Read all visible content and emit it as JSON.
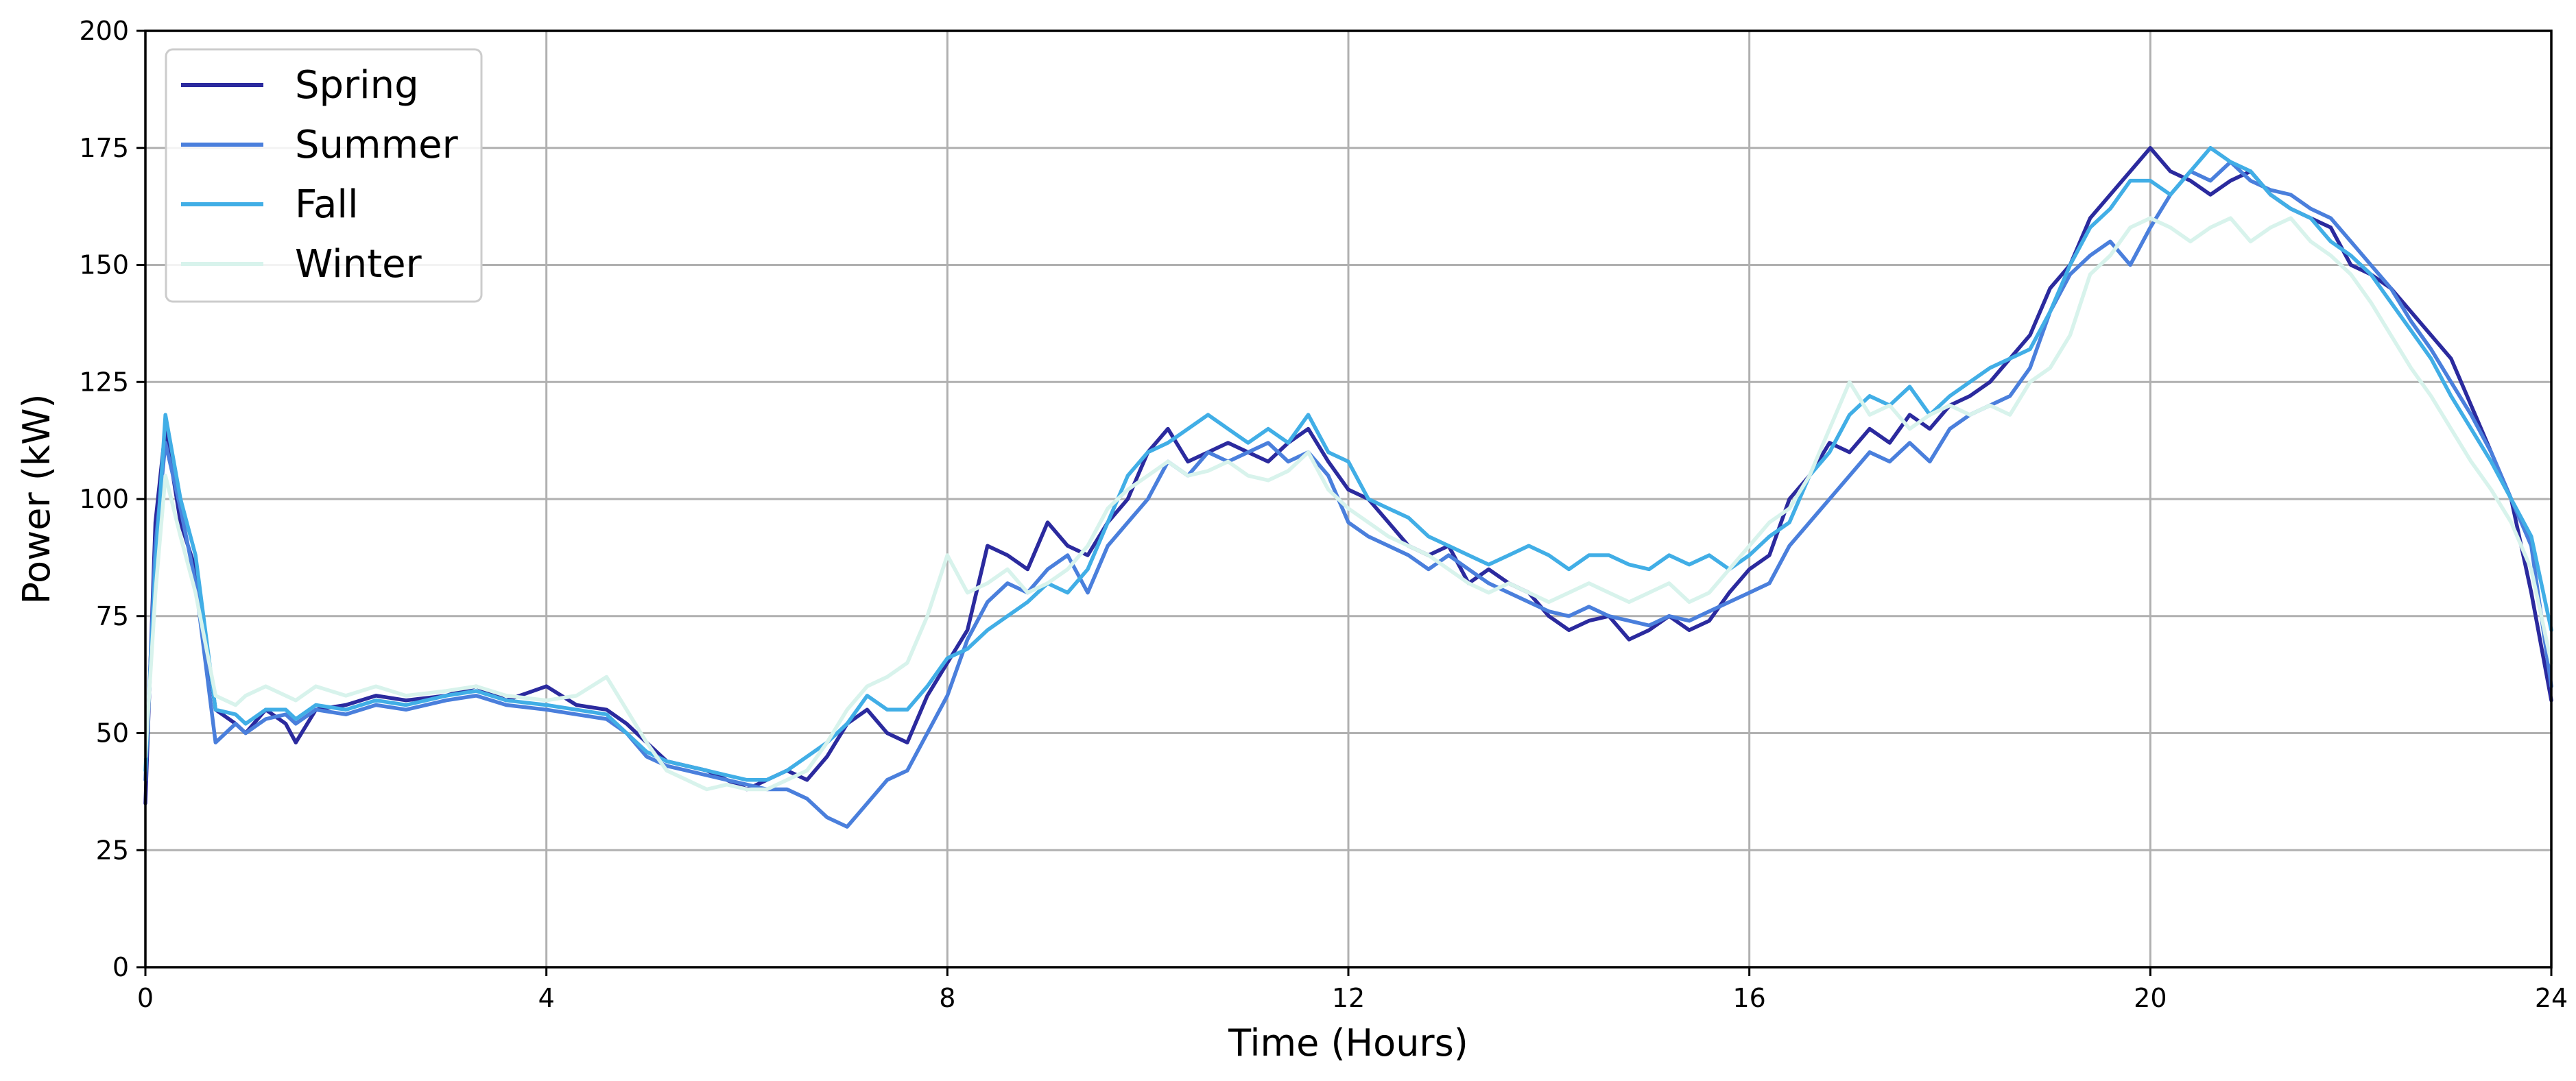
{
  "chart_data": {
    "type": "line",
    "title": "",
    "xlabel": "Time (Hours)",
    "ylabel": "Power (kW)",
    "xlim": [
      0,
      24
    ],
    "ylim": [
      0,
      200
    ],
    "xticks": [
      0,
      4,
      8,
      12,
      16,
      20,
      24
    ],
    "yticks": [
      0,
      25,
      50,
      75,
      100,
      125,
      150,
      175,
      200
    ],
    "grid": true,
    "legend": "top-left",
    "series": [
      {
        "name": "Spring",
        "color": "#2b2a9e",
        "x": [
          0,
          0.1,
          0.2,
          0.35,
          0.5,
          0.7,
          0.9,
          1.0,
          1.2,
          1.4,
          1.5,
          1.7,
          2.0,
          2.3,
          2.6,
          3.0,
          3.3,
          3.6,
          4.0,
          4.3,
          4.6,
          4.8,
          5.0,
          5.2,
          5.4,
          5.6,
          5.8,
          6.0,
          6.2,
          6.4,
          6.6,
          6.8,
          7.0,
          7.2,
          7.4,
          7.6,
          7.8,
          8.0,
          8.2,
          8.4,
          8.6,
          8.8,
          9.0,
          9.2,
          9.4,
          9.6,
          9.8,
          10.0,
          10.2,
          10.4,
          10.6,
          10.8,
          11.0,
          11.2,
          11.4,
          11.6,
          11.8,
          12.0,
          12.2,
          12.4,
          12.6,
          12.8,
          13.0,
          13.2,
          13.4,
          13.6,
          13.8,
          14.0,
          14.2,
          14.4,
          14.6,
          14.8,
          15.0,
          15.2,
          15.4,
          15.6,
          15.8,
          16.0,
          16.2,
          16.4,
          16.6,
          16.8,
          17.0,
          17.2,
          17.4,
          17.6,
          17.8,
          18.0,
          18.2,
          18.4,
          18.6,
          18.8,
          19.0,
          19.2,
          19.4,
          19.6,
          19.8,
          20.0,
          20.2,
          20.4,
          20.6,
          20.8,
          21.0,
          21.2,
          21.4,
          21.6,
          21.8,
          22.0,
          22.2,
          22.4,
          22.6,
          22.8,
          23.0,
          23.2,
          23.4,
          23.6,
          23.8,
          24.0
        ],
        "values": [
          35,
          95,
          115,
          95,
          85,
          55,
          52,
          50,
          55,
          52,
          48,
          55,
          56,
          58,
          57,
          58,
          60,
          57,
          60,
          56,
          55,
          52,
          48,
          44,
          43,
          42,
          40,
          38,
          40,
          42,
          40,
          45,
          52,
          55,
          50,
          48,
          58,
          65,
          72,
          90,
          88,
          85,
          95,
          90,
          88,
          95,
          100,
          110,
          115,
          108,
          110,
          112,
          110,
          108,
          112,
          115,
          108,
          102,
          100,
          95,
          90,
          88,
          90,
          82,
          85,
          82,
          80,
          75,
          72,
          74,
          75,
          70,
          72,
          75,
          72,
          74,
          80,
          85,
          88,
          100,
          105,
          112,
          110,
          115,
          112,
          118,
          115,
          120,
          122,
          125,
          130,
          135,
          145,
          150,
          160,
          165,
          170,
          175,
          170,
          168,
          165,
          168,
          170,
          165,
          162,
          160,
          158,
          150,
          148,
          145,
          140,
          135,
          130,
          120,
          110,
          100,
          80,
          57
        ]
      },
      {
        "name": "Summer",
        "color": "#4a7fdc",
        "x": [
          0,
          0.1,
          0.2,
          0.35,
          0.5,
          0.7,
          0.9,
          1.0,
          1.2,
          1.4,
          1.5,
          1.7,
          2.0,
          2.3,
          2.6,
          3.0,
          3.3,
          3.6,
          4.0,
          4.3,
          4.6,
          4.8,
          5.0,
          5.2,
          5.4,
          5.6,
          5.8,
          6.0,
          6.2,
          6.4,
          6.6,
          6.8,
          7.0,
          7.2,
          7.4,
          7.6,
          7.8,
          8.0,
          8.2,
          8.4,
          8.6,
          8.8,
          9.0,
          9.2,
          9.4,
          9.6,
          9.8,
          10.0,
          10.2,
          10.4,
          10.6,
          10.8,
          11.0,
          11.2,
          11.4,
          11.6,
          11.8,
          12.0,
          12.2,
          12.4,
          12.6,
          12.8,
          13.0,
          13.2,
          13.4,
          13.6,
          13.8,
          14.0,
          14.2,
          14.4,
          14.6,
          14.8,
          15.0,
          15.2,
          15.4,
          15.6,
          15.8,
          16.0,
          16.2,
          16.4,
          16.6,
          16.8,
          17.0,
          17.2,
          17.4,
          17.6,
          17.8,
          18.0,
          18.2,
          18.4,
          18.6,
          18.8,
          19.0,
          19.2,
          19.4,
          19.6,
          19.8,
          20.0,
          20.2,
          20.4,
          20.6,
          20.8,
          21.0,
          21.2,
          21.4,
          21.6,
          21.8,
          22.0,
          22.2,
          22.4,
          22.6,
          22.8,
          23.0,
          23.2,
          23.4,
          23.6,
          23.8,
          24.0
        ],
        "values": [
          40,
          90,
          112,
          98,
          82,
          48,
          52,
          50,
          53,
          54,
          52,
          55,
          54,
          56,
          55,
          57,
          58,
          56,
          55,
          54,
          53,
          50,
          45,
          43,
          42,
          41,
          40,
          39,
          38,
          38,
          36,
          32,
          30,
          35,
          40,
          42,
          50,
          58,
          70,
          78,
          82,
          80,
          85,
          88,
          80,
          90,
          95,
          100,
          108,
          105,
          110,
          108,
          110,
          112,
          108,
          110,
          105,
          95,
          92,
          90,
          88,
          85,
          88,
          85,
          82,
          80,
          78,
          76,
          75,
          77,
          75,
          74,
          73,
          75,
          74,
          76,
          78,
          80,
          82,
          90,
          95,
          100,
          105,
          110,
          108,
          112,
          108,
          115,
          118,
          120,
          122,
          128,
          140,
          148,
          152,
          155,
          150,
          158,
          165,
          170,
          168,
          172,
          168,
          166,
          165,
          162,
          160,
          155,
          150,
          145,
          138,
          132,
          125,
          118,
          110,
          100,
          90,
          60
        ]
      },
      {
        "name": "Fall",
        "color": "#41aee6",
        "x": [
          0,
          0.1,
          0.2,
          0.35,
          0.5,
          0.7,
          0.9,
          1.0,
          1.2,
          1.4,
          1.5,
          1.7,
          2.0,
          2.3,
          2.6,
          3.0,
          3.3,
          3.6,
          4.0,
          4.3,
          4.6,
          4.8,
          5.0,
          5.2,
          5.4,
          5.6,
          5.8,
          6.0,
          6.2,
          6.4,
          6.6,
          6.8,
          7.0,
          7.2,
          7.4,
          7.6,
          7.8,
          8.0,
          8.2,
          8.4,
          8.6,
          8.8,
          9.0,
          9.2,
          9.4,
          9.6,
          9.8,
          10.0,
          10.2,
          10.4,
          10.6,
          10.8,
          11.0,
          11.2,
          11.4,
          11.6,
          11.8,
          12.0,
          12.2,
          12.4,
          12.6,
          12.8,
          13.0,
          13.2,
          13.4,
          13.6,
          13.8,
          14.0,
          14.2,
          14.4,
          14.6,
          14.8,
          15.0,
          15.2,
          15.4,
          15.6,
          15.8,
          16.0,
          16.2,
          16.4,
          16.6,
          16.8,
          17.0,
          17.2,
          17.4,
          17.6,
          17.8,
          18.0,
          18.2,
          18.4,
          18.6,
          18.8,
          19.0,
          19.2,
          19.4,
          19.6,
          19.8,
          20.0,
          20.2,
          20.4,
          20.6,
          20.8,
          21.0,
          21.2,
          21.4,
          21.6,
          21.8,
          22.0,
          22.2,
          22.4,
          22.6,
          22.8,
          23.0,
          23.2,
          23.4,
          23.6,
          23.8,
          24.0
        ],
        "values": [
          42,
          85,
          118,
          100,
          88,
          55,
          54,
          52,
          55,
          55,
          53,
          56,
          55,
          57,
          56,
          58,
          59,
          57,
          56,
          55,
          54,
          50,
          46,
          44,
          43,
          42,
          41,
          40,
          40,
          42,
          45,
          48,
          52,
          58,
          55,
          55,
          60,
          66,
          68,
          72,
          75,
          78,
          82,
          80,
          85,
          95,
          105,
          110,
          112,
          115,
          118,
          115,
          112,
          115,
          112,
          118,
          110,
          108,
          100,
          98,
          96,
          92,
          90,
          88,
          86,
          88,
          90,
          88,
          85,
          88,
          88,
          86,
          85,
          88,
          86,
          88,
          85,
          88,
          92,
          95,
          105,
          110,
          118,
          122,
          120,
          124,
          118,
          122,
          125,
          128,
          130,
          132,
          140,
          150,
          158,
          162,
          168,
          168,
          165,
          170,
          175,
          172,
          170,
          165,
          162,
          160,
          155,
          152,
          148,
          142,
          136,
          130,
          122,
          115,
          108,
          100,
          92,
          72
        ]
      },
      {
        "name": "Winter",
        "color": "#d8f3ec",
        "x": [
          0,
          0.1,
          0.2,
          0.35,
          0.5,
          0.7,
          0.9,
          1.0,
          1.2,
          1.4,
          1.5,
          1.7,
          2.0,
          2.3,
          2.6,
          3.0,
          3.3,
          3.6,
          4.0,
          4.3,
          4.6,
          4.8,
          5.0,
          5.2,
          5.4,
          5.6,
          5.8,
          6.0,
          6.2,
          6.4,
          6.6,
          6.8,
          7.0,
          7.2,
          7.4,
          7.6,
          7.8,
          8.0,
          8.2,
          8.4,
          8.6,
          8.8,
          9.0,
          9.2,
          9.4,
          9.6,
          9.8,
          10.0,
          10.2,
          10.4,
          10.6,
          10.8,
          11.0,
          11.2,
          11.4,
          11.6,
          11.8,
          12.0,
          12.2,
          12.4,
          12.6,
          12.8,
          13.0,
          13.2,
          13.4,
          13.6,
          13.8,
          14.0,
          14.2,
          14.4,
          14.6,
          14.8,
          15.0,
          15.2,
          15.4,
          15.6,
          15.8,
          16.0,
          16.2,
          16.4,
          16.6,
          16.8,
          17.0,
          17.2,
          17.4,
          17.6,
          17.8,
          18.0,
          18.2,
          18.4,
          18.6,
          18.8,
          19.0,
          19.2,
          19.4,
          19.6,
          19.8,
          20.0,
          20.2,
          20.4,
          20.6,
          20.8,
          21.0,
          21.2,
          21.4,
          21.6,
          21.8,
          22.0,
          22.2,
          22.4,
          22.6,
          22.8,
          23.0,
          23.2,
          23.4,
          23.6,
          23.8,
          24.0
        ],
        "values": [
          45,
          80,
          105,
          92,
          80,
          58,
          56,
          58,
          60,
          58,
          57,
          60,
          58,
          60,
          58,
          59,
          60,
          58,
          57,
          58,
          62,
          55,
          48,
          42,
          40,
          38,
          39,
          38,
          38,
          40,
          42,
          48,
          55,
          60,
          62,
          65,
          75,
          88,
          80,
          82,
          85,
          80,
          82,
          85,
          90,
          98,
          102,
          105,
          108,
          105,
          106,
          108,
          105,
          104,
          106,
          110,
          102,
          98,
          95,
          92,
          90,
          88,
          85,
          82,
          80,
          82,
          80,
          78,
          80,
          82,
          80,
          78,
          80,
          82,
          78,
          80,
          85,
          90,
          95,
          98,
          105,
          115,
          125,
          118,
          120,
          115,
          118,
          120,
          118,
          120,
          118,
          125,
          128,
          135,
          148,
          152,
          158,
          160,
          158,
          155,
          158,
          160,
          155,
          158,
          160,
          155,
          152,
          148,
          142,
          135,
          128,
          122,
          115,
          108,
          102,
          95,
          85,
          65
        ]
      }
    ]
  }
}
